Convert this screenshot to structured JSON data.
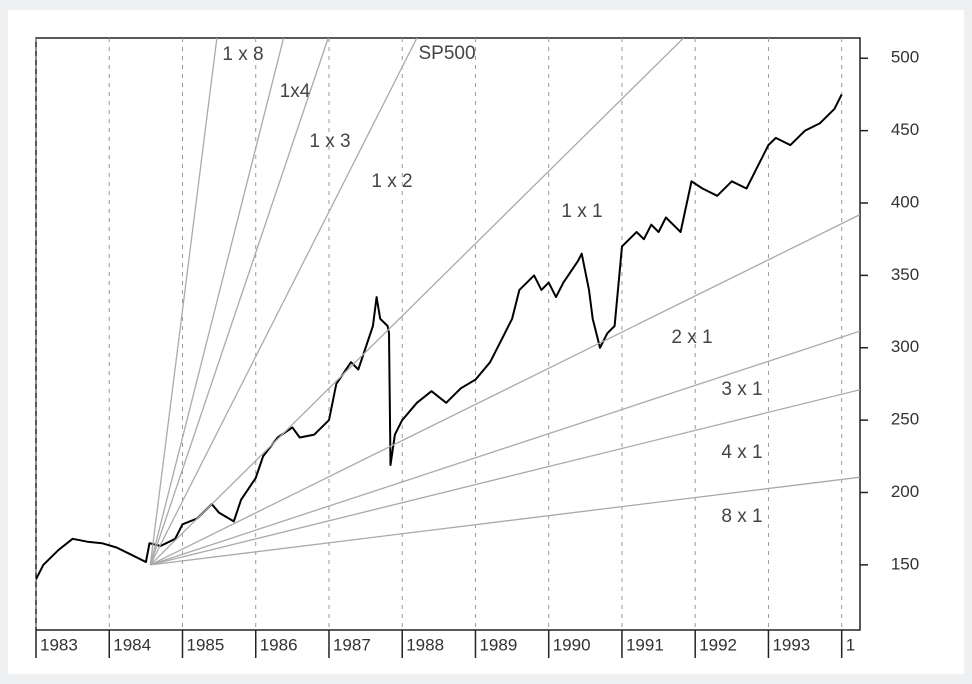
{
  "chart_data": {
    "type": "line",
    "xlim": [
      1983,
      1994.25
    ],
    "xticks": [
      1983,
      1984,
      1985,
      1986,
      1987,
      1988,
      1989,
      1990,
      1991,
      1992,
      1993,
      {
        "value": 1994,
        "label": "1"
      }
    ],
    "ylim": [
      105,
      514
    ],
    "yticks": [
      150,
      200,
      250,
      300,
      350,
      400,
      450,
      500
    ],
    "grid": "x",
    "series": [
      {
        "name": "SP500",
        "color": "#000000",
        "x": [
          1983.0,
          1983.1,
          1983.3,
          1983.5,
          1983.7,
          1983.9,
          1984.1,
          1984.3,
          1984.5,
          1984.55,
          1984.7,
          1984.9,
          1985.0,
          1985.2,
          1985.4,
          1985.5,
          1985.7,
          1985.8,
          1986.0,
          1986.1,
          1986.3,
          1986.5,
          1986.6,
          1986.8,
          1987.0,
          1987.1,
          1987.3,
          1987.4,
          1987.5,
          1987.6,
          1987.65,
          1987.7,
          1987.8,
          1987.82,
          1987.84,
          1987.9,
          1988.0,
          1988.2,
          1988.4,
          1988.6,
          1988.8,
          1989.0,
          1989.2,
          1989.4,
          1989.5,
          1989.6,
          1989.8,
          1989.9,
          1990.0,
          1990.1,
          1990.2,
          1990.4,
          1990.45,
          1990.55,
          1990.6,
          1990.7,
          1990.8,
          1990.9,
          1991.0,
          1991.2,
          1991.3,
          1991.4,
          1991.5,
          1991.6,
          1991.7,
          1991.8,
          1991.95,
          1992.1,
          1992.3,
          1992.5,
          1992.7,
          1992.8,
          1992.9,
          1993.0,
          1993.1,
          1993.3,
          1993.5,
          1993.7,
          1993.9,
          1994.0
        ],
        "values": [
          140,
          150,
          160,
          168,
          166,
          165,
          162,
          157,
          152,
          165,
          163,
          168,
          178,
          182,
          192,
          186,
          180,
          195,
          210,
          225,
          238,
          245,
          238,
          240,
          250,
          275,
          290,
          285,
          300,
          315,
          335,
          320,
          315,
          310,
          219,
          240,
          250,
          262,
          270,
          262,
          272,
          278,
          290,
          310,
          320,
          340,
          350,
          340,
          345,
          335,
          345,
          360,
          365,
          340,
          320,
          300,
          310,
          315,
          370,
          380,
          375,
          385,
          380,
          390,
          385,
          380,
          415,
          410,
          405,
          415,
          410,
          420,
          430,
          440,
          445,
          440,
          450,
          455,
          465,
          475
        ]
      },
      {
        "name": "1 x 8",
        "color": "#aaaaaa",
        "x": [
          1984.56,
          1985.47
        ],
        "values": [
          150,
          514
        ]
      },
      {
        "name": "1x4",
        "color": "#aaaaaa",
        "x": [
          1984.56,
          1986.38
        ],
        "values": [
          150,
          514
        ]
      },
      {
        "name": "1 x 3",
        "color": "#aaaaaa",
        "x": [
          1984.56,
          1986.99
        ],
        "values": [
          150,
          514
        ]
      },
      {
        "name": "1 x 2",
        "color": "#aaaaaa",
        "x": [
          1984.56,
          1988.2
        ],
        "values": [
          150,
          514
        ]
      },
      {
        "name": "1 x 1",
        "color": "#aaaaaa",
        "x": [
          1984.56,
          1991.84
        ],
        "values": [
          150,
          514
        ]
      },
      {
        "name": "2 x 1",
        "color": "#aaaaaa",
        "x": [
          1984.56,
          1994.25
        ],
        "values": [
          150,
          392
        ]
      },
      {
        "name": "3 x 1",
        "color": "#aaaaaa",
        "x": [
          1984.56,
          1994.25
        ],
        "values": [
          150,
          311.5
        ]
      },
      {
        "name": "4 x 1",
        "color": "#aaaaaa",
        "x": [
          1984.56,
          1994.25
        ],
        "values": [
          150,
          271
        ]
      },
      {
        "name": "8 x 1",
        "color": "#aaaaaa",
        "x": [
          1984.56,
          1994.25
        ],
        "values": [
          150,
          210.6
        ]
      }
    ]
  }
}
